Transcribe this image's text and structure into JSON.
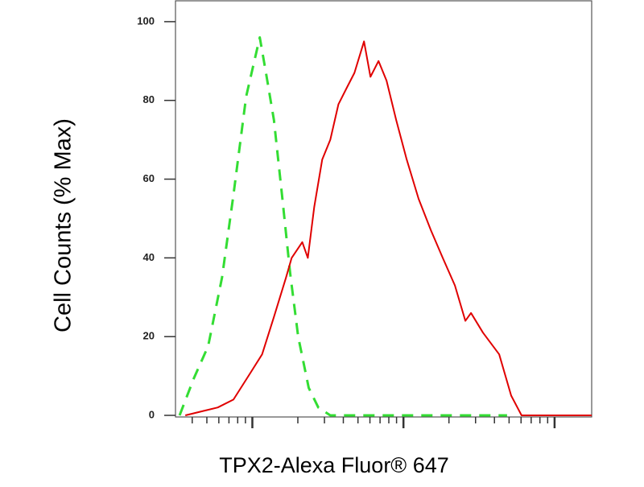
{
  "chart_data": {
    "type": "line",
    "y_label": "Cell Counts (% Max)",
    "x_label": "TPX2-Alexa Fluor® 647",
    "xscale": "log",
    "xlim": [
      3.1,
      1760
    ],
    "xticks": [
      10,
      100,
      1000
    ],
    "ylim": [
      0,
      105.5
    ],
    "yticks": [
      0,
      20,
      40,
      60,
      80,
      100
    ],
    "series": [
      {
        "color": "#33dd33",
        "dashed": true,
        "x": [
          3.3,
          4.1,
          5.1,
          6.3,
          7.5,
          9.1,
          11.2,
          12.3,
          13.9,
          15.7,
          17.8,
          20.1,
          23.6,
          27.3,
          32.8,
          485
        ],
        "values": [
          0,
          9.4,
          17.6,
          35,
          56,
          81,
          96,
          87,
          75,
          56,
          36,
          20,
          7,
          2,
          0,
          0
        ]
      },
      {
        "color": "#e00000",
        "dashed": false,
        "x": [
          3.6,
          4.6,
          5.9,
          7.5,
          9.6,
          11.6,
          13.9,
          16.7,
          18.2,
          21.4,
          23.3,
          25.7,
          29.0,
          32.8,
          37.1,
          41.9,
          47.4,
          54.8,
          60.5,
          68.4,
          77.3,
          89.5,
          105,
          126,
          152,
          182,
          219,
          257,
          280,
          336,
          430,
          516,
          605,
          1760
        ],
        "values": [
          0,
          1,
          2,
          4,
          10.5,
          15.5,
          25,
          35,
          40,
          44,
          40,
          53,
          65,
          70,
          79,
          83,
          87,
          95,
          86,
          90,
          85,
          75,
          65,
          55,
          47,
          40,
          33,
          24,
          26,
          21,
          15.5,
          5,
          0,
          0
        ]
      }
    ]
  }
}
